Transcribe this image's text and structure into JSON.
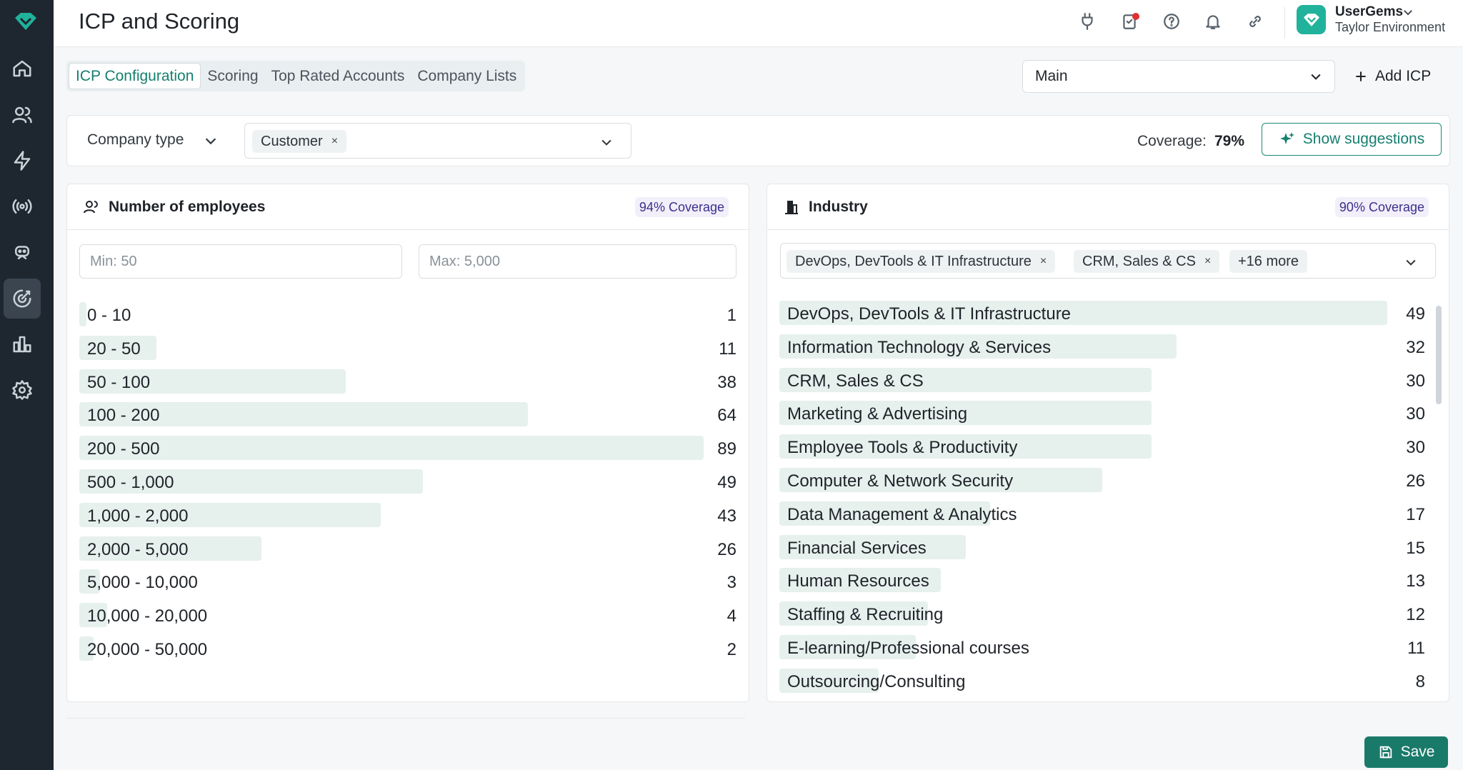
{
  "header": {
    "title": "ICP and Scoring"
  },
  "user": {
    "company": "UserGems",
    "environment": "Taylor Environment"
  },
  "tabs": [
    {
      "label": "ICP Configuration",
      "active": true
    },
    {
      "label": "Scoring",
      "active": false
    },
    {
      "label": "Top Rated Accounts",
      "active": false
    },
    {
      "label": "Company Lists",
      "active": false
    }
  ],
  "icp_select": {
    "value": "Main"
  },
  "add_icp": {
    "label": "Add ICP"
  },
  "filter": {
    "company_type_label": "Company type",
    "selected_chip": "Customer",
    "coverage_label": "Coverage:",
    "coverage_value": "79%",
    "suggestions_label": "Show suggestions"
  },
  "employees": {
    "title": "Number of employees",
    "coverage": "94% Coverage",
    "min_placeholder": "Min: 50",
    "max_placeholder": "Max: 5,000",
    "rows": [
      {
        "label": "0 - 10",
        "count": "1",
        "value": 1
      },
      {
        "label": "20 - 50",
        "count": "11",
        "value": 11
      },
      {
        "label": "50 - 100",
        "count": "38",
        "value": 38
      },
      {
        "label": "100 - 200",
        "count": "64",
        "value": 64
      },
      {
        "label": "200 - 500",
        "count": "89",
        "value": 89
      },
      {
        "label": "500 - 1,000",
        "count": "49",
        "value": 49
      },
      {
        "label": "1,000 - 2,000",
        "count": "43",
        "value": 43
      },
      {
        "label": "2,000 - 5,000",
        "count": "26",
        "value": 26
      },
      {
        "label": "5,000 - 10,000",
        "count": "3",
        "value": 3
      },
      {
        "label": "10,000 - 20,000",
        "count": "4",
        "value": 4
      },
      {
        "label": "20,000 - 50,000",
        "count": "2",
        "value": 2
      }
    ]
  },
  "industry": {
    "title": "Industry",
    "coverage": "90% Coverage",
    "chips": [
      "DevOps, DevTools & IT Infrastructure",
      "CRM, Sales & CS"
    ],
    "more_chip": "+16 more",
    "rows": [
      {
        "label": "DevOps, DevTools & IT Infrastructure",
        "count": "49",
        "value": 49
      },
      {
        "label": "Information Technology & Services",
        "count": "32",
        "value": 32
      },
      {
        "label": "CRM, Sales & CS",
        "count": "30",
        "value": 30
      },
      {
        "label": "Marketing & Advertising",
        "count": "30",
        "value": 30
      },
      {
        "label": "Employee Tools & Productivity",
        "count": "30",
        "value": 30
      },
      {
        "label": "Computer & Network Security",
        "count": "26",
        "value": 26
      },
      {
        "label": "Data Management & Analytics",
        "count": "17",
        "value": 17
      },
      {
        "label": "Financial Services",
        "count": "15",
        "value": 15
      },
      {
        "label": "Human Resources",
        "count": "13",
        "value": 13
      },
      {
        "label": "Staffing & Recruiting",
        "count": "12",
        "value": 12
      },
      {
        "label": "E-learning/Professional courses",
        "count": "11",
        "value": 11
      },
      {
        "label": "Outsourcing/Consulting",
        "count": "8",
        "value": 8
      }
    ]
  },
  "save": {
    "label": "Save"
  },
  "colors": {
    "accent": "#15806f",
    "bar": "#e6f0ed",
    "sidebar": "#1e2730"
  }
}
